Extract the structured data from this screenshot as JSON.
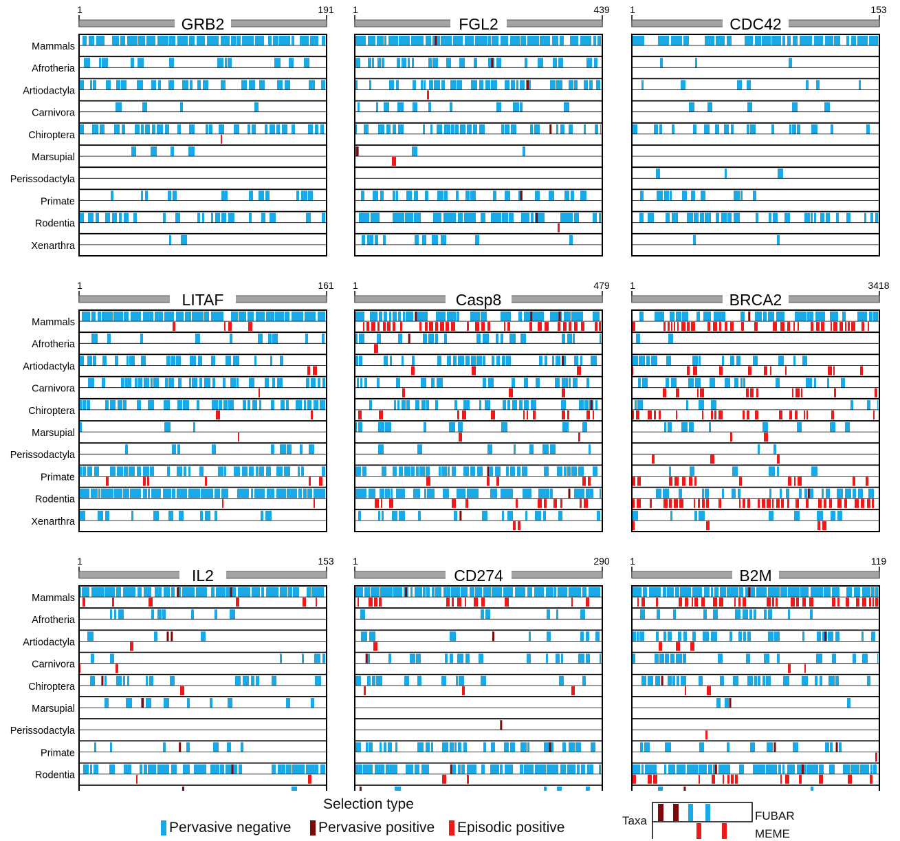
{
  "colors": {
    "pervasive_negative": "#18a9e6",
    "pervasive_positive": "#7d0a0a",
    "episodic_positive": "#f01818",
    "gene_bar": "#a3a3a3"
  },
  "taxa": [
    "Mammals",
    "Afrotheria",
    "Artiodactyla",
    "Carnivora",
    "Chiroptera",
    "Marsupial",
    "Perissodactyla",
    "Primate",
    "Rodentia",
    "Xenarthra"
  ],
  "legend": {
    "title": "Selection type",
    "items": [
      {
        "label": "Pervasive negative",
        "color": "#18a9e6"
      },
      {
        "label": "Pervasive positive",
        "color": "#7d0a0a"
      },
      {
        "label": "Episodic positive",
        "color": "#f01818"
      }
    ],
    "taxa_label": "Taxa",
    "fubar_label": "FUBAR",
    "meme_label": "MEME"
  },
  "chart_data": [
    {
      "type": "heatmap",
      "title": "GRB2",
      "length": 191,
      "x_start": 1,
      "x_end": 191,
      "seed": 11,
      "density": [
        0.9,
        0.25,
        0.4,
        0.08,
        0.55,
        0.04,
        0.02,
        0.25,
        0.45,
        0.05
      ],
      "episodic": [
        0.02,
        0,
        0,
        0,
        0.01,
        0,
        0,
        0,
        0,
        0
      ],
      "pervasive": [
        0,
        0,
        0,
        0,
        0,
        0,
        0,
        0,
        0,
        0
      ]
    },
    {
      "type": "heatmap",
      "title": "FGL2",
      "length": 439,
      "x_start": 1,
      "x_end": 439,
      "seed": 23,
      "density": [
        0.95,
        0.45,
        0.55,
        0.25,
        0.55,
        0.1,
        0,
        0.5,
        0.7,
        0.25
      ],
      "episodic": [
        0.05,
        0,
        0.01,
        0.03,
        0.02,
        0.02,
        0,
        0.01,
        0.04,
        0.01
      ],
      "pervasive": [
        0.01,
        0.01,
        0.01,
        0,
        0.01,
        0.01,
        0,
        0.01,
        0.01,
        0
      ]
    },
    {
      "type": "heatmap",
      "title": "CDC42",
      "length": 153,
      "x_start": 1,
      "x_end": 153,
      "seed": 37,
      "density": [
        0.8,
        0.05,
        0.2,
        0.15,
        0.35,
        0,
        0.05,
        0.25,
        0.6,
        0.05
      ],
      "episodic": [
        0,
        0,
        0,
        0,
        0,
        0,
        0,
        0,
        0,
        0
      ],
      "pervasive": [
        0,
        0,
        0,
        0,
        0,
        0,
        0,
        0,
        0,
        0
      ]
    },
    {
      "type": "heatmap",
      "title": "LITAF",
      "length": 161,
      "x_start": 1,
      "x_end": 161,
      "seed": 41,
      "density": [
        0.9,
        0.35,
        0.5,
        0.6,
        0.6,
        0.08,
        0.15,
        0.55,
        0.85,
        0.3
      ],
      "episodic": [
        0.12,
        0,
        0.08,
        0.02,
        0.05,
        0.02,
        0.01,
        0.15,
        0.05,
        0
      ],
      "pervasive": [
        0,
        0,
        0,
        0,
        0,
        0,
        0,
        0,
        0,
        0
      ]
    },
    {
      "type": "heatmap",
      "title": "Casp8",
      "length": 479,
      "x_start": 1,
      "x_end": 479,
      "seed": 53,
      "density": [
        0.8,
        0.4,
        0.6,
        0.45,
        0.55,
        0.2,
        0.15,
        0.55,
        0.65,
        0.3
      ],
      "episodic": [
        0.55,
        0.05,
        0.15,
        0.05,
        0.3,
        0.05,
        0,
        0.1,
        0.25,
        0.03
      ],
      "pervasive": [
        0.05,
        0.02,
        0.02,
        0,
        0.02,
        0,
        0,
        0.01,
        0.02,
        0.01
      ]
    },
    {
      "type": "heatmap",
      "title": "BRCA2",
      "length": 3418,
      "x_start": 1,
      "x_end": 3418,
      "seed": 67,
      "density": [
        0.7,
        0.05,
        0.3,
        0.3,
        0.2,
        0.2,
        0.04,
        0.08,
        0.5,
        0.1
      ],
      "episodic": [
        0.6,
        0,
        0.35,
        0.25,
        0.35,
        0.12,
        0.04,
        0.3,
        0.7,
        0.1
      ],
      "pervasive": [
        0.02,
        0,
        0,
        0,
        0,
        0,
        0,
        0,
        0.01,
        0
      ]
    },
    {
      "type": "heatmap",
      "title": "IL2",
      "length": 153,
      "x_start": 1,
      "x_end": 153,
      "seed": 71,
      "density": [
        0.75,
        0.2,
        0.15,
        0.12,
        0.3,
        0.12,
        0,
        0.12,
        0.65,
        0.06
      ],
      "episodic": [
        0.2,
        0.01,
        0.02,
        0.03,
        0.07,
        0,
        0,
        0.01,
        0.05,
        0
      ],
      "pervasive": [
        0.03,
        0,
        0.04,
        0,
        0.02,
        0.02,
        0,
        0.01,
        0.01,
        0.01
      ]
    },
    {
      "type": "heatmap",
      "title": "CD274",
      "length": 290,
      "x_start": 1,
      "x_end": 290,
      "seed": 83,
      "density": [
        0.9,
        0.12,
        0.2,
        0.3,
        0.25,
        0,
        0.02,
        0.6,
        0.7,
        0.06
      ],
      "episodic": [
        0.25,
        0.01,
        0.03,
        0.01,
        0.05,
        0,
        0,
        0.01,
        0.08,
        0.01
      ],
      "pervasive": [
        0.02,
        0,
        0.01,
        0.01,
        0,
        0,
        0.01,
        0.01,
        0.01,
        0.01
      ]
    },
    {
      "type": "heatmap",
      "title": "B2M",
      "length": 119,
      "x_start": 1,
      "x_end": 119,
      "seed": 97,
      "density": [
        0.85,
        0.35,
        0.5,
        0.35,
        0.45,
        0.05,
        0,
        0.3,
        0.75,
        0.1
      ],
      "episodic": [
        0.45,
        0,
        0.1,
        0.05,
        0.06,
        0.04,
        0.01,
        0.05,
        0.35,
        0.02
      ],
      "pervasive": [
        0.02,
        0,
        0.02,
        0,
        0.02,
        0.01,
        0,
        0.03,
        0.03,
        0.02
      ]
    }
  ]
}
